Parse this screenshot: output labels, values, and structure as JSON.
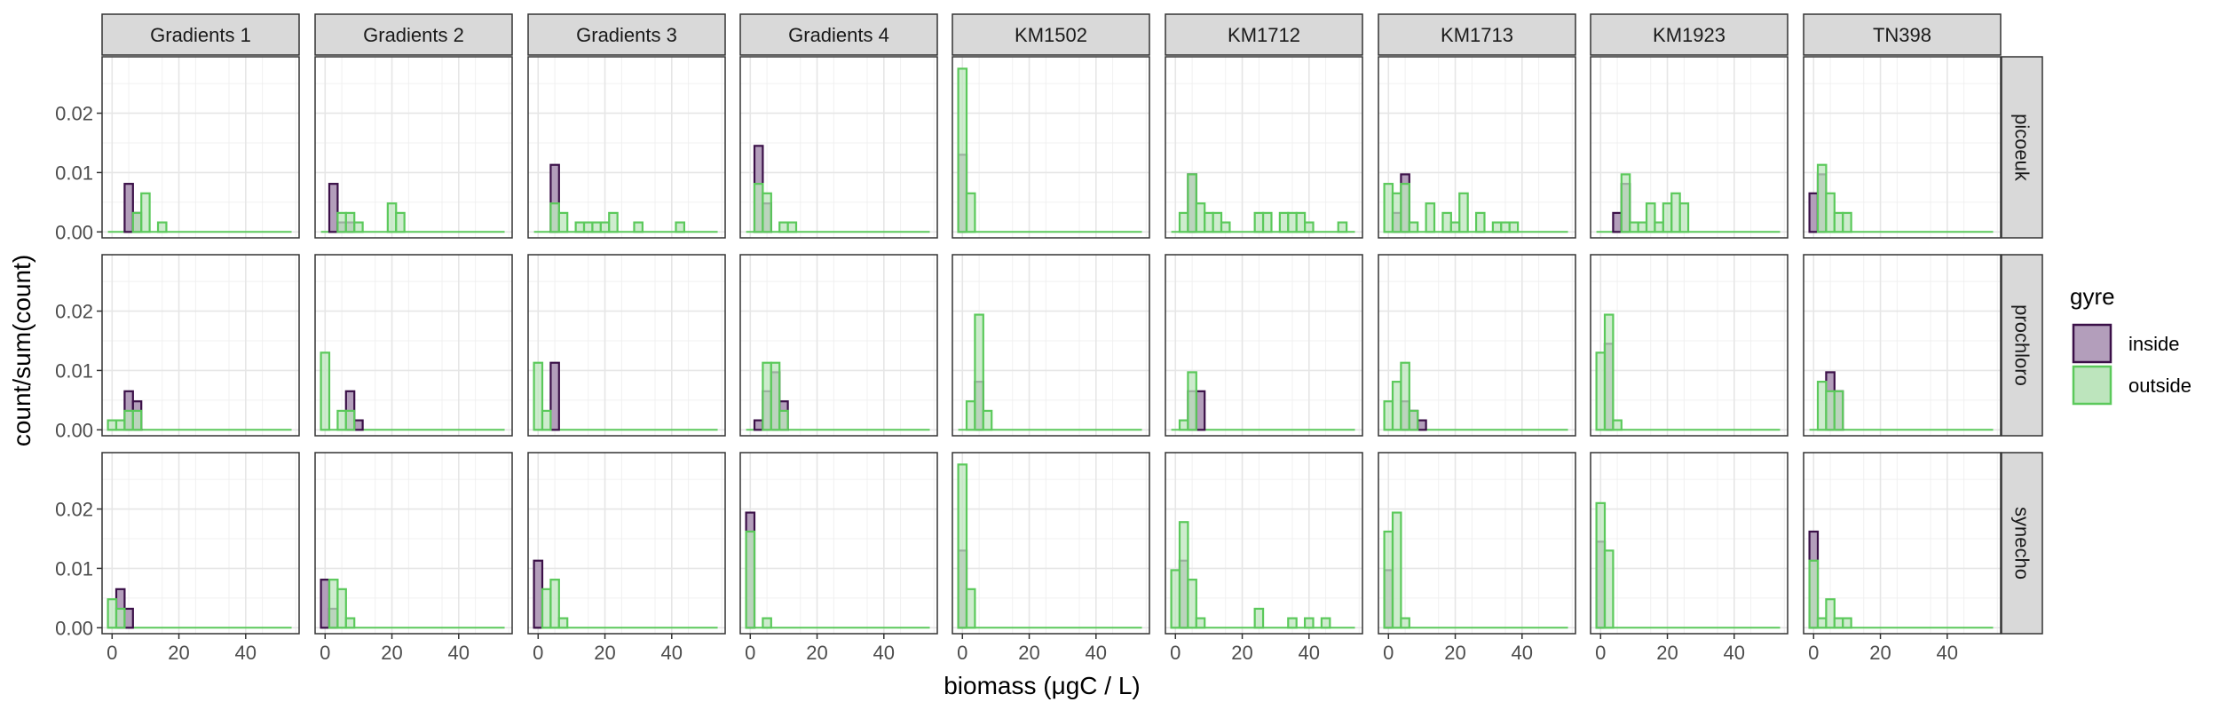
{
  "chart_data": {
    "type": "histogram",
    "xlabel": "biomass (μgC / L)",
    "ylabel": "count/sum(count)",
    "xlim": [
      -3,
      56
    ],
    "ylim": [
      -0.001,
      0.0295
    ],
    "x_ticks": [
      0,
      20,
      40
    ],
    "x_tick_labels": [
      "0",
      "20",
      "40"
    ],
    "y_ticks": [
      0,
      0.01,
      0.02
    ],
    "y_tick_labels": [
      "0.00",
      "0.01",
      "0.02"
    ],
    "bin_width": 2.5,
    "grid": true,
    "columns": [
      "Gradients 1",
      "Gradients 2",
      "Gradients 3",
      "Gradients 4",
      "KM1502",
      "KM1712",
      "KM1713",
      "KM1923",
      "TN398"
    ],
    "rows": [
      "picoeuk",
      "prochloro",
      "synecho"
    ],
    "legend": {
      "title": "gyre",
      "position": "right",
      "entries": [
        {
          "label": "inside",
          "fill": "#b39ebb",
          "stroke": "#3b1048"
        },
        {
          "label": "outside",
          "fill": "#bde5bd",
          "stroke": "#5bc95b"
        }
      ]
    },
    "panels": [
      {
        "column": "Gradients 1",
        "row": "picoeuk",
        "inside": [
          [
            5,
            0.0081
          ],
          [
            7.5,
            0.0032
          ]
        ],
        "outside": [
          [
            7.5,
            0.0032
          ],
          [
            10,
            0.0065
          ],
          [
            15,
            0.0016
          ]
        ]
      },
      {
        "column": "Gradients 1",
        "row": "prochloro",
        "inside": [
          [
            5,
            0.0065
          ],
          [
            7.5,
            0.0048
          ]
        ],
        "outside": [
          [
            0,
            0.0016
          ],
          [
            2.5,
            0.0016
          ],
          [
            5,
            0.0032
          ],
          [
            7.5,
            0.0032
          ]
        ]
      },
      {
        "column": "Gradients 1",
        "row": "synecho",
        "inside": [
          [
            2.5,
            0.0065
          ],
          [
            5,
            0.0032
          ]
        ],
        "outside": [
          [
            0,
            0.0048
          ],
          [
            2.5,
            0.0032
          ]
        ]
      },
      {
        "column": "Gradients 2",
        "row": "picoeuk",
        "inside": [
          [
            2.5,
            0.0081
          ],
          [
            5,
            0.0016
          ],
          [
            7.5,
            0.0016
          ]
        ],
        "outside": [
          [
            5,
            0.0032
          ],
          [
            7.5,
            0.0032
          ],
          [
            10,
            0.0016
          ],
          [
            20,
            0.0048
          ],
          [
            22.5,
            0.0032
          ]
        ]
      },
      {
        "column": "Gradients 2",
        "row": "prochloro",
        "inside": [
          [
            7.5,
            0.0065
          ],
          [
            10,
            0.0016
          ]
        ],
        "outside": [
          [
            0,
            0.013
          ],
          [
            5,
            0.0032
          ],
          [
            7.5,
            0.0032
          ]
        ]
      },
      {
        "column": "Gradients 2",
        "row": "synecho",
        "inside": [
          [
            0,
            0.0081
          ],
          [
            2.5,
            0.0032
          ]
        ],
        "outside": [
          [
            2.5,
            0.0081
          ],
          [
            5,
            0.0065
          ],
          [
            7.5,
            0.0016
          ]
        ]
      },
      {
        "column": "Gradients 3",
        "row": "picoeuk",
        "inside": [
          [
            5,
            0.0113
          ]
        ],
        "outside": [
          [
            5,
            0.0048
          ],
          [
            7.5,
            0.0032
          ],
          [
            12.5,
            0.0016
          ],
          [
            15,
            0.0016
          ],
          [
            17.5,
            0.0016
          ],
          [
            20,
            0.0016
          ],
          [
            22.5,
            0.0032
          ],
          [
            30,
            0.0016
          ],
          [
            42.5,
            0.0016
          ]
        ]
      },
      {
        "column": "Gradients 3",
        "row": "prochloro",
        "inside": [
          [
            5,
            0.0113
          ]
        ],
        "outside": [
          [
            0,
            0.0113
          ],
          [
            2.5,
            0.0032
          ]
        ]
      },
      {
        "column": "Gradients 3",
        "row": "synecho",
        "inside": [
          [
            0,
            0.0113
          ]
        ],
        "outside": [
          [
            2.5,
            0.0065
          ],
          [
            5,
            0.0081
          ],
          [
            7.5,
            0.0016
          ]
        ]
      },
      {
        "column": "Gradients 4",
        "row": "picoeuk",
        "inside": [
          [
            2.5,
            0.0145
          ],
          [
            5,
            0.0048
          ]
        ],
        "outside": [
          [
            2.5,
            0.0081
          ],
          [
            5,
            0.0065
          ],
          [
            10,
            0.0016
          ],
          [
            12.5,
            0.0016
          ]
        ]
      },
      {
        "column": "Gradients 4",
        "row": "prochloro",
        "inside": [
          [
            2.5,
            0.0016
          ],
          [
            5,
            0.0065
          ],
          [
            7.5,
            0.0097
          ],
          [
            10,
            0.0048
          ]
        ],
        "outside": [
          [
            5,
            0.0113
          ],
          [
            7.5,
            0.0113
          ],
          [
            10,
            0.0032
          ]
        ]
      },
      {
        "column": "Gradients 4",
        "row": "synecho",
        "inside": [
          [
            0,
            0.0194
          ]
        ],
        "outside": [
          [
            0,
            0.0162
          ],
          [
            5,
            0.0016
          ]
        ]
      },
      {
        "column": "KM1502",
        "row": "picoeuk",
        "inside": [
          [
            0,
            0.013
          ]
        ],
        "outside": [
          [
            0,
            0.0275
          ],
          [
            2.5,
            0.0065
          ]
        ]
      },
      {
        "column": "KM1502",
        "row": "prochloro",
        "inside": [
          [
            5,
            0.0081
          ]
        ],
        "outside": [
          [
            2.5,
            0.0048
          ],
          [
            5,
            0.0194
          ],
          [
            7.5,
            0.0032
          ]
        ]
      },
      {
        "column": "KM1502",
        "row": "synecho",
        "inside": [
          [
            0,
            0.013
          ]
        ],
        "outside": [
          [
            0,
            0.0275
          ],
          [
            2.5,
            0.0065
          ]
        ]
      },
      {
        "column": "KM1712",
        "row": "picoeuk",
        "inside": [
          [
            5,
            0.0097
          ]
        ],
        "outside": [
          [
            2.5,
            0.0032
          ],
          [
            5,
            0.0097
          ],
          [
            7.5,
            0.0048
          ],
          [
            10,
            0.0032
          ],
          [
            12.5,
            0.0032
          ],
          [
            15,
            0.0016
          ],
          [
            25,
            0.0032
          ],
          [
            27.5,
            0.0032
          ],
          [
            32.5,
            0.0032
          ],
          [
            35,
            0.0032
          ],
          [
            37.5,
            0.0032
          ],
          [
            40,
            0.0016
          ],
          [
            50,
            0.0016
          ]
        ]
      },
      {
        "column": "KM1712",
        "row": "prochloro",
        "inside": [
          [
            5,
            0.0065
          ],
          [
            7.5,
            0.0065
          ]
        ],
        "outside": [
          [
            2.5,
            0.0016
          ],
          [
            5,
            0.0097
          ]
        ]
      },
      {
        "column": "KM1712",
        "row": "synecho",
        "inside": [
          [
            2.5,
            0.0113
          ]
        ],
        "outside": [
          [
            0,
            0.0097
          ],
          [
            2.5,
            0.0178
          ],
          [
            5,
            0.0081
          ],
          [
            7.5,
            0.0016
          ],
          [
            25,
            0.0032
          ],
          [
            35,
            0.0016
          ],
          [
            40,
            0.0016
          ],
          [
            45,
            0.0016
          ]
        ]
      },
      {
        "column": "KM1713",
        "row": "picoeuk",
        "inside": [
          [
            5,
            0.0097
          ],
          [
            2.5,
            0.0032
          ]
        ],
        "outside": [
          [
            0,
            0.0081
          ],
          [
            2.5,
            0.0065
          ],
          [
            5,
            0.0081
          ],
          [
            7.5,
            0.0016
          ],
          [
            12.5,
            0.0048
          ],
          [
            17.5,
            0.0032
          ],
          [
            20,
            0.0016
          ],
          [
            22.5,
            0.0065
          ],
          [
            27.5,
            0.0032
          ],
          [
            32.5,
            0.0016
          ],
          [
            35,
            0.0016
          ],
          [
            37.5,
            0.0016
          ]
        ]
      },
      {
        "column": "KM1713",
        "row": "prochloro",
        "inside": [
          [
            5,
            0.0048
          ],
          [
            7.5,
            0.0032
          ],
          [
            10,
            0.0016
          ]
        ],
        "outside": [
          [
            0,
            0.0048
          ],
          [
            2.5,
            0.0081
          ],
          [
            5,
            0.0113
          ],
          [
            7.5,
            0.0032
          ]
        ]
      },
      {
        "column": "KM1713",
        "row": "synecho",
        "inside": [
          [
            0,
            0.0097
          ]
        ],
        "outside": [
          [
            0,
            0.0162
          ],
          [
            2.5,
            0.0194
          ],
          [
            5,
            0.0016
          ]
        ]
      },
      {
        "column": "KM1923",
        "row": "picoeuk",
        "inside": [
          [
            5,
            0.0032
          ],
          [
            7.5,
            0.0081
          ]
        ],
        "outside": [
          [
            7.5,
            0.0097
          ],
          [
            10,
            0.0016
          ],
          [
            12.5,
            0.0016
          ],
          [
            15,
            0.0048
          ],
          [
            17.5,
            0.0016
          ],
          [
            20,
            0.0048
          ],
          [
            22.5,
            0.0065
          ],
          [
            25,
            0.0048
          ]
        ]
      },
      {
        "column": "KM1923",
        "row": "prochloro",
        "inside": [
          [
            2.5,
            0.0145
          ]
        ],
        "outside": [
          [
            0,
            0.013
          ],
          [
            2.5,
            0.0194
          ],
          [
            5,
            0.0016
          ]
        ]
      },
      {
        "column": "KM1923",
        "row": "synecho",
        "inside": [
          [
            0,
            0.0145
          ]
        ],
        "outside": [
          [
            0,
            0.021
          ],
          [
            2.5,
            0.013
          ]
        ]
      },
      {
        "column": "TN398",
        "row": "picoeuk",
        "inside": [
          [
            0,
            0.0065
          ],
          [
            2.5,
            0.0097
          ]
        ],
        "outside": [
          [
            2.5,
            0.0113
          ],
          [
            5,
            0.0065
          ],
          [
            7.5,
            0.0032
          ],
          [
            10,
            0.0032
          ]
        ]
      },
      {
        "column": "TN398",
        "row": "prochloro",
        "inside": [
          [
            5,
            0.0097
          ],
          [
            7.5,
            0.0065
          ]
        ],
        "outside": [
          [
            2.5,
            0.0081
          ],
          [
            5,
            0.0065
          ],
          [
            7.5,
            0.0065
          ]
        ]
      },
      {
        "column": "TN398",
        "row": "synecho",
        "inside": [
          [
            0,
            0.0162
          ]
        ],
        "outside": [
          [
            0,
            0.0113
          ],
          [
            2.5,
            0.0016
          ],
          [
            5,
            0.0048
          ],
          [
            7.5,
            0.0016
          ],
          [
            10,
            0.0016
          ]
        ]
      }
    ]
  }
}
